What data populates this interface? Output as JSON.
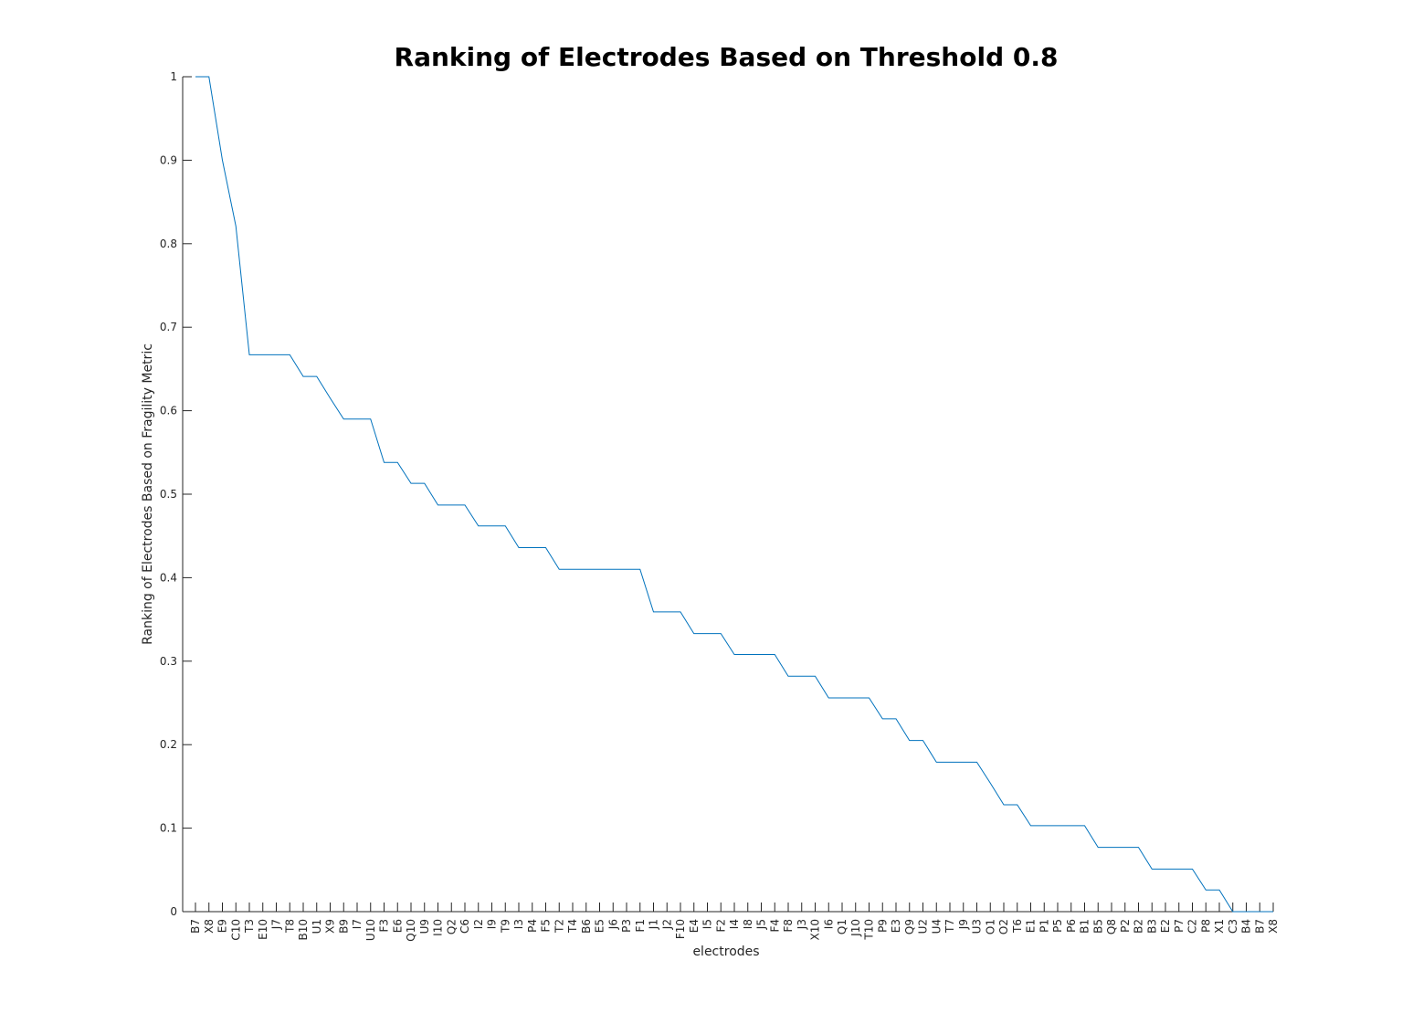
{
  "chart_data": {
    "type": "line",
    "title": "Ranking of Electrodes Based on Threshold 0.8",
    "xlabel": "electrodes",
    "ylabel": "Ranking of Electrodes Based on Fragility Metric",
    "ylim": [
      0,
      1
    ],
    "yticks": [
      "0",
      "0.1",
      "0.2",
      "0.3",
      "0.4",
      "0.5",
      "0.6",
      "0.7",
      "0.8",
      "0.9",
      "1"
    ],
    "grid": false,
    "line_color": "#0072bd",
    "categories": [
      "B7",
      "X8",
      "E9",
      "C10",
      "T3",
      "E10",
      "J7",
      "T8",
      "B10",
      "U1",
      "X9",
      "B9",
      "I7",
      "U10",
      "F3",
      "E6",
      "Q10",
      "U9",
      "I10",
      "Q2",
      "C6",
      "I2",
      "I9",
      "T9",
      "I3",
      "P4",
      "F5",
      "T2",
      "T4",
      "B6",
      "E5",
      "J6",
      "P3",
      "F1",
      "J1",
      "J2",
      "F10",
      "E4",
      "I5",
      "F2",
      "I4",
      "I8",
      "J5",
      "F4",
      "F8",
      "J3",
      "X10",
      "I6",
      "Q1",
      "J10",
      "T10",
      "P9",
      "E3",
      "Q9",
      "U2",
      "U4",
      "T7",
      "J9",
      "U3",
      "O1",
      "O2",
      "T6",
      "E1",
      "P1",
      "P5",
      "P6",
      "B1",
      "B5",
      "Q8",
      "P2",
      "B2",
      "B3",
      "E2",
      "P7",
      "C2",
      "P8",
      "X1",
      "C3",
      "B4",
      "B7",
      "X8"
    ],
    "values": [
      1.0,
      1.0,
      0.9,
      0.821,
      0.667,
      0.667,
      0.667,
      0.667,
      0.641,
      0.641,
      0.615,
      0.59,
      0.59,
      0.59,
      0.538,
      0.538,
      0.513,
      0.513,
      0.487,
      0.487,
      0.487,
      0.462,
      0.462,
      0.462,
      0.436,
      0.436,
      0.436,
      0.41,
      0.41,
      0.41,
      0.41,
      0.41,
      0.41,
      0.41,
      0.359,
      0.359,
      0.359,
      0.333,
      0.333,
      0.333,
      0.308,
      0.308,
      0.308,
      0.308,
      0.282,
      0.282,
      0.282,
      0.256,
      0.256,
      0.256,
      0.256,
      0.231,
      0.231,
      0.205,
      0.205,
      0.179,
      0.179,
      0.179,
      0.179,
      0.154,
      0.128,
      0.128,
      0.103,
      0.103,
      0.103,
      0.103,
      0.103,
      0.077,
      0.077,
      0.077,
      0.077,
      0.051,
      0.051,
      0.051,
      0.051,
      0.026,
      0.026,
      0.0,
      0.0,
      0.0,
      0.0
    ]
  }
}
